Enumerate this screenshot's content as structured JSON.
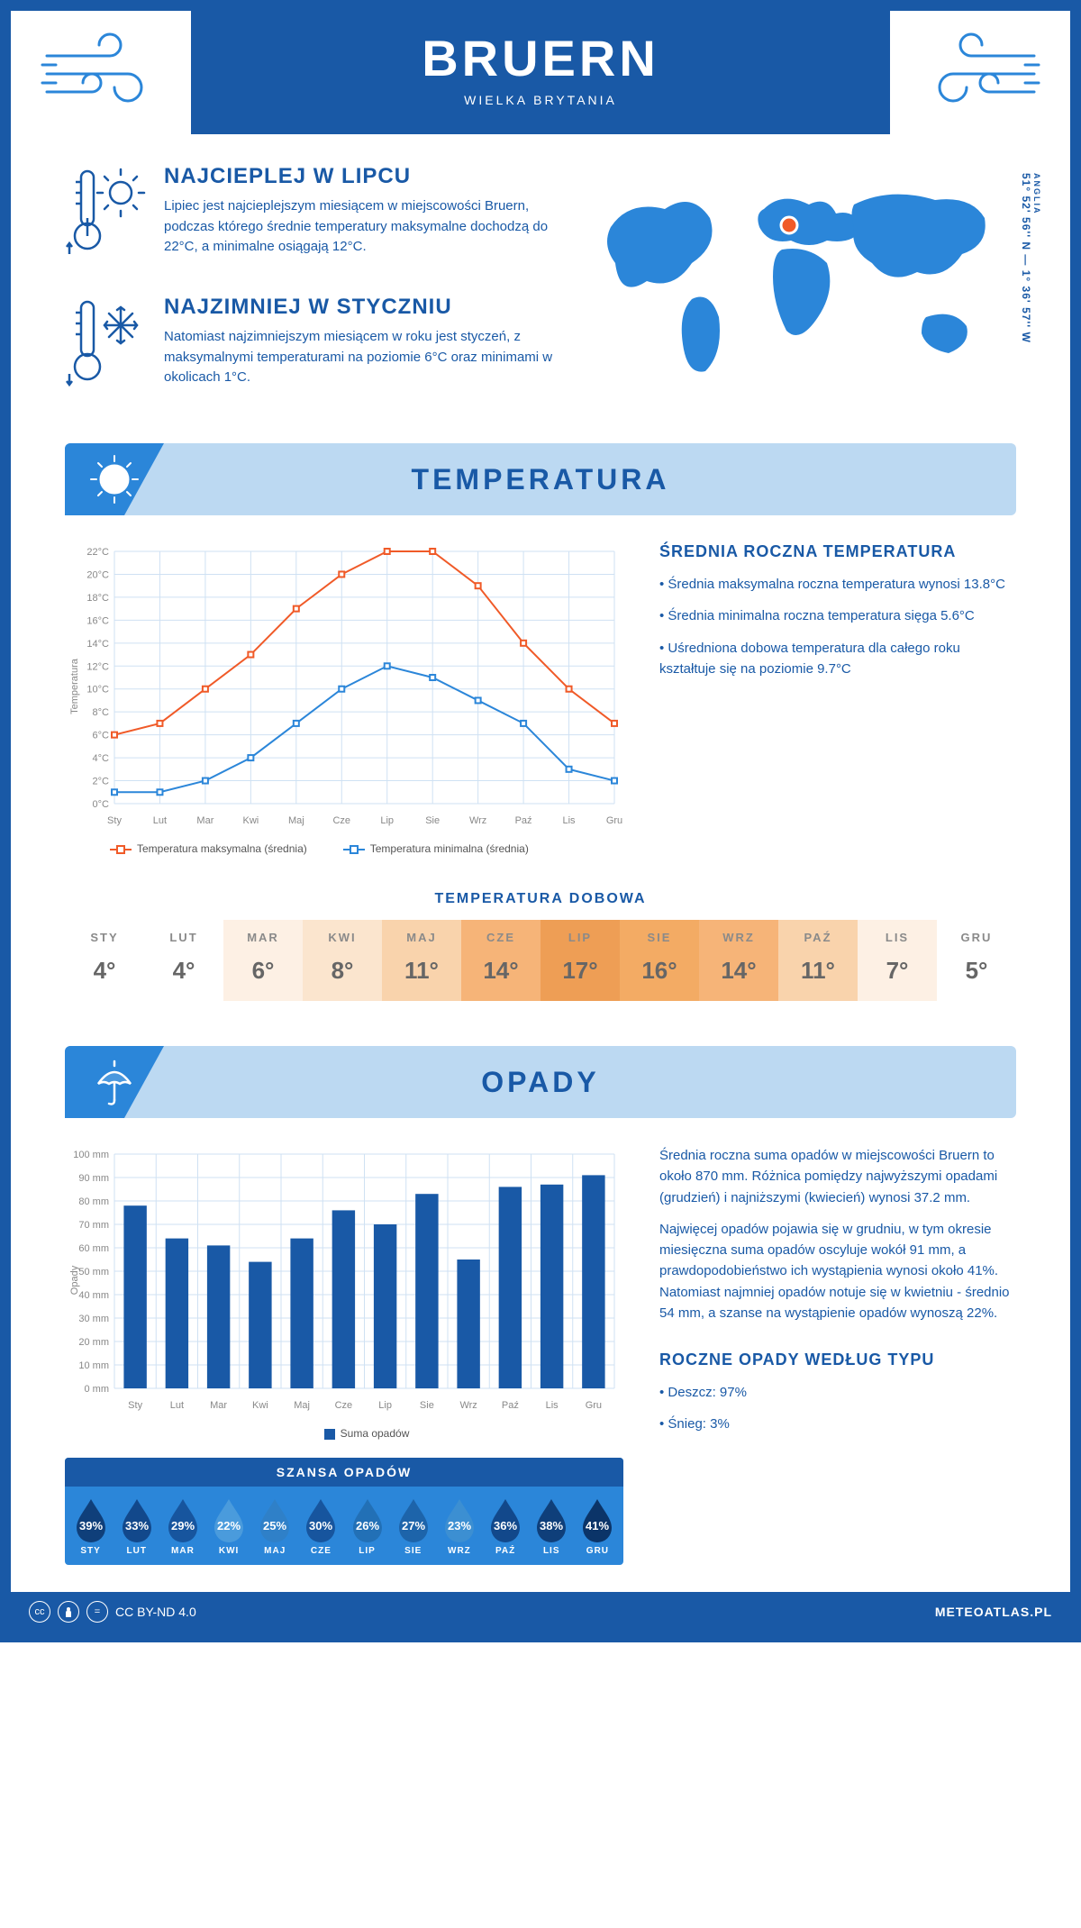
{
  "header": {
    "city": "BRUERN",
    "country": "WIELKA BRYTANIA"
  },
  "coords": {
    "region": "ANGLIA",
    "text": "51° 52' 56'' N — 1° 36' 57'' W"
  },
  "colors": {
    "primary": "#1959a6",
    "secondary": "#2b86d9",
    "section_bg": "#bcd9f2",
    "temp_max_line": "#f05a28",
    "temp_min_line": "#2b86d9",
    "bar_fill": "#1959a6",
    "grid": "#cfe1f3"
  },
  "facts": {
    "hot": {
      "title": "NAJCIEPLEJ W LIPCU",
      "text": "Lipiec jest najcieplejszym miesiącem w miejscowości Bruern, podczas którego średnie temperatury maksymalne dochodzą do 22°C, a minimalne osiągają 12°C."
    },
    "cold": {
      "title": "NAJZIMNIEJ W STYCZNIU",
      "text": "Natomiast najzimniejszym miesiącem w roku jest styczeń, z maksymalnymi temperaturami na poziomie 6°C oraz minimami w okolicach 1°C."
    }
  },
  "months_short": [
    "Sty",
    "Lut",
    "Mar",
    "Kwi",
    "Maj",
    "Cze",
    "Lip",
    "Sie",
    "Wrz",
    "Paź",
    "Lis",
    "Gru"
  ],
  "months_upper": [
    "STY",
    "LUT",
    "MAR",
    "KWI",
    "MAJ",
    "CZE",
    "LIP",
    "SIE",
    "WRZ",
    "PAŹ",
    "LIS",
    "GRU"
  ],
  "temperature": {
    "section_title": "TEMPERATURA",
    "chart": {
      "type": "line",
      "ylabel": "Temperatura",
      "ylim": [
        0,
        22
      ],
      "ytick_step": 2,
      "series": [
        {
          "name": "Temperatura maksymalna (średnia)",
          "color": "#f05a28",
          "values": [
            6,
            7,
            10,
            13,
            17,
            20,
            22,
            22,
            19,
            14,
            10,
            7
          ]
        },
        {
          "name": "Temperatura minimalna (średnia)",
          "color": "#2b86d9",
          "values": [
            1,
            1,
            2,
            4,
            7,
            10,
            12,
            11,
            9,
            7,
            3,
            2
          ]
        }
      ],
      "grid_color": "#cfe1f3",
      "line_width": 2,
      "marker_size": 4,
      "background": "#ffffff"
    },
    "summary": {
      "title": "ŚREDNIA ROCZNA TEMPERATURA",
      "items": [
        "Średnia maksymalna roczna temperatura wynosi 13.8°C",
        "Średnia minimalna roczna temperatura sięga 5.6°C",
        "Uśredniona dobowa temperatura dla całego roku kształtuje się na poziomie 9.7°C"
      ]
    },
    "daily": {
      "title": "TEMPERATURA DOBOWA",
      "values": [
        "4°",
        "4°",
        "6°",
        "8°",
        "11°",
        "14°",
        "17°",
        "16°",
        "14°",
        "11°",
        "7°",
        "5°"
      ],
      "cell_colors": [
        "#ffffff",
        "#ffffff",
        "#fdf0e4",
        "#fbe5ce",
        "#f9d3ac",
        "#f6b478",
        "#ee9e55",
        "#f3ab64",
        "#f6b478",
        "#f9d3ac",
        "#fdf0e4",
        "#ffffff"
      ]
    }
  },
  "precip": {
    "section_title": "OPADY",
    "chart": {
      "type": "bar",
      "ylabel": "Opady",
      "ylim": [
        0,
        100
      ],
      "ytick_step": 10,
      "values": [
        78,
        64,
        61,
        54,
        64,
        76,
        70,
        83,
        55,
        86,
        87,
        91
      ],
      "bar_color": "#1959a6",
      "grid_color": "#cfe1f3",
      "bar_width": 0.55,
      "legend": "Suma opadów"
    },
    "text": {
      "p1": "Średnia roczna suma opadów w miejscowości Bruern to około 870 mm. Różnica pomiędzy najwyższymi opadami (grudzień) i najniższymi (kwiecień) wynosi 37.2 mm.",
      "p2": "Najwięcej opadów pojawia się w grudniu, w tym okresie miesięczna suma opadów oscyluje wokół 91 mm, a prawdopodobieństwo ich wystąpienia wynosi około 41%. Natomiast najmniej opadów notuje się w kwietniu - średnio 54 mm, a szanse na wystąpienie opadów wynoszą 22%."
    },
    "chance": {
      "title": "SZANSA OPADÓW",
      "values": [
        39,
        33,
        29,
        22,
        25,
        30,
        26,
        27,
        23,
        36,
        38,
        41
      ],
      "drop_colors": [
        "#0f3f7a",
        "#12488b",
        "#17559e",
        "#4a9bdc",
        "#2f80c8",
        "#17559e",
        "#2270b6",
        "#1d64aa",
        "#3c8fd2",
        "#12488b",
        "#0f3f7a",
        "#0b3468"
      ]
    },
    "by_type": {
      "title": "ROCZNE OPADY WEDŁUG TYPU",
      "items": [
        "Deszcz: 97%",
        "Śnieg: 3%"
      ]
    }
  },
  "footer": {
    "license": "CC BY-ND 4.0",
    "site": "METEOATLAS.PL"
  }
}
